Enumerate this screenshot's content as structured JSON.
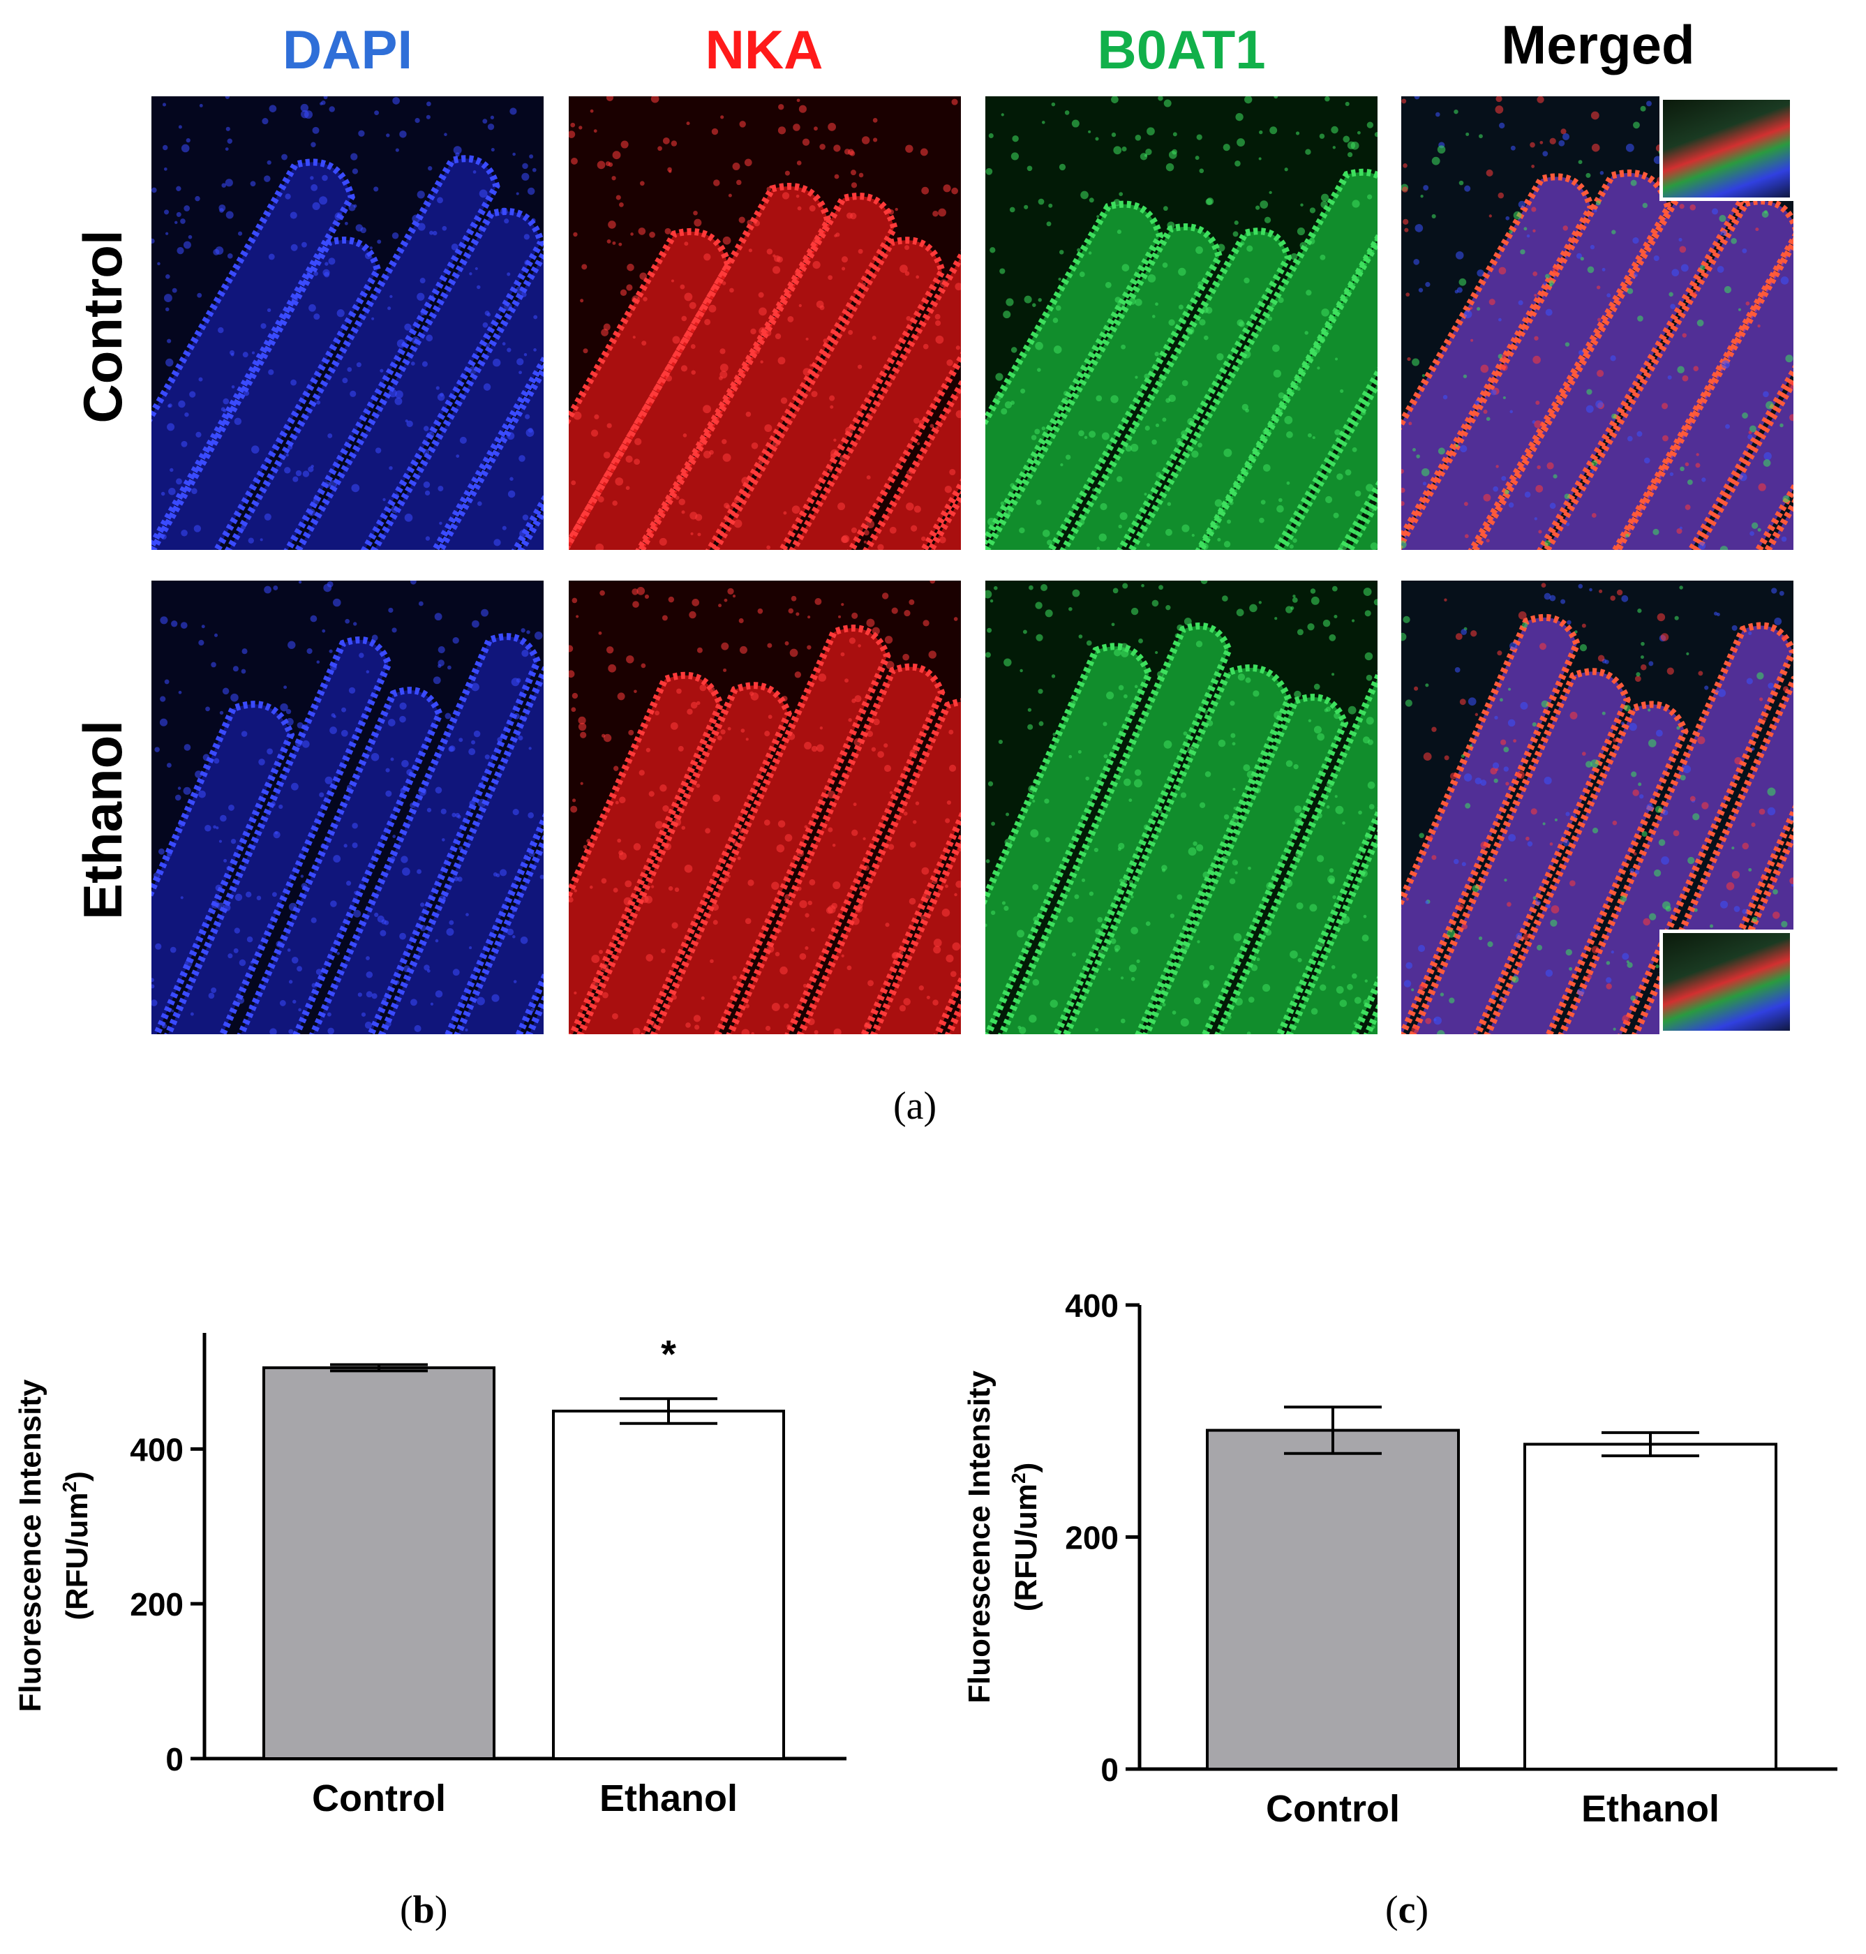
{
  "figure_a": {
    "columns": [
      {
        "label": "DAPI",
        "color": "#2f6fd8"
      },
      {
        "label": "NKA",
        "color": "#ff1a1a"
      },
      {
        "label": "B0AT1",
        "color": "#11b04a"
      },
      {
        "label": "Merged",
        "color": "#000000"
      }
    ],
    "rows": [
      {
        "label": "Control"
      },
      {
        "label": "Ethanol"
      }
    ],
    "caption_letter": "a"
  },
  "panel_b": {
    "letter": "b"
  },
  "panel_c": {
    "letter": "c"
  },
  "chart_data": [
    {
      "type": "bar",
      "categories": [
        "Control",
        "Ethanol"
      ],
      "values": [
        505,
        449
      ],
      "errors": [
        4,
        16
      ],
      "bar_colors": [
        "#a7a6aa",
        "#ffffff"
      ],
      "annotations": [
        {
          "category": "Ethanol",
          "text": "*"
        }
      ],
      "ylabel_line1": "Fluorescence  Intensity",
      "ylabel_line2": "(RFU/um",
      "ylabel_sup": "2",
      "ylabel_close": ")",
      "yticks": [
        0,
        200,
        400
      ],
      "ylim": [
        0,
        550
      ]
    },
    {
      "type": "bar",
      "categories": [
        "Control",
        "Ethanol"
      ],
      "values": [
        292,
        280
      ],
      "errors": [
        20,
        10
      ],
      "bar_colors": [
        "#a7a6aa",
        "#ffffff"
      ],
      "annotations": [],
      "ylabel_line1": "Fluorescence  Intensity",
      "ylabel_line2": "(RFU/um",
      "ylabel_sup": "2",
      "ylabel_close": ")",
      "yticks": [
        0,
        200,
        400
      ],
      "ylim": [
        0,
        400
      ]
    }
  ]
}
